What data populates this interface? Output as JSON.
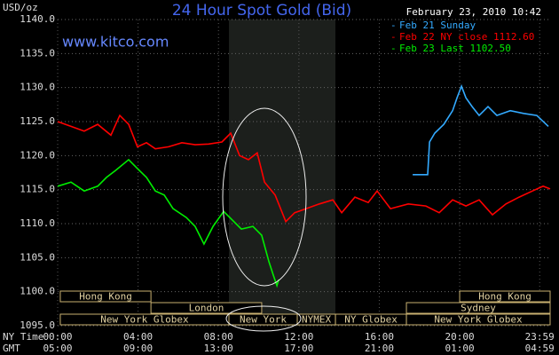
{
  "chart_data": {
    "type": "line",
    "title": "24 Hour Spot Gold (Bid)",
    "subtitle": "February 23, 2010 10:42",
    "source": "www.kitco.com",
    "ylabel": "USD/oz",
    "x_row_labels": [
      "NY Time",
      "GMT"
    ],
    "xlim": [
      0,
      24.5
    ],
    "xticks": [
      {
        "value": 0,
        "label": "00:00"
      },
      {
        "value": 4,
        "label": "04:00"
      },
      {
        "value": 8,
        "label": "08:00"
      },
      {
        "value": 12,
        "label": "12:00"
      },
      {
        "value": 16,
        "label": "16:00"
      },
      {
        "value": 20,
        "label": "20:00"
      },
      {
        "value": 23.98,
        "label": "23:59"
      }
    ],
    "xticks_gmt": [
      "05:00",
      "09:00",
      "13:00",
      "17:00",
      "21:00",
      "01:00",
      "04:59"
    ],
    "ylim": [
      1095,
      1140
    ],
    "yticks": [
      {
        "value": 1095,
        "label": "1095.0"
      },
      {
        "value": 1100,
        "label": "1100.0"
      },
      {
        "value": 1105,
        "label": "1105.0"
      },
      {
        "value": 1110,
        "label": "1110.0"
      },
      {
        "value": 1115,
        "label": "1115.0"
      },
      {
        "value": 1120,
        "label": "1120.0"
      },
      {
        "value": 1125,
        "label": "1125.0"
      },
      {
        "value": 1130,
        "label": "1130.0"
      },
      {
        "value": 1135,
        "label": "1135.0"
      },
      {
        "value": 1140,
        "label": "1140.0"
      }
    ],
    "grid": true,
    "series": [
      {
        "name": "Feb 21 Sunday",
        "color": "#33aaff",
        "x": [
          17.66,
          18.41,
          18.5,
          18.76,
          19.21,
          19.65,
          19.87,
          20.09,
          20.31,
          20.62,
          20.97,
          21.41,
          21.85,
          22.52,
          23.18,
          23.84,
          24.41
        ],
        "values": [
          1117.2,
          1117.2,
          1122.0,
          1123.3,
          1124.6,
          1126.6,
          1128.5,
          1130.2,
          1128.5,
          1127.2,
          1125.9,
          1127.2,
          1125.9,
          1126.6,
          1126.2,
          1125.9,
          1124.3
        ]
      },
      {
        "name": "Feb 22 NY close 1112.60",
        "color": "#ff0000",
        "x": [
          0,
          0.66,
          1.32,
          1.99,
          2.65,
          3.09,
          3.53,
          3.97,
          4.42,
          4.86,
          5.52,
          6.18,
          6.84,
          7.51,
          8.17,
          8.61,
          9.05,
          9.49,
          9.93,
          10.29,
          10.82,
          11.35,
          11.79,
          12.36,
          13.02,
          13.69,
          14.13,
          14.79,
          15.45,
          15.89,
          16.56,
          17.44,
          18.32,
          18.98,
          19.65,
          20.31,
          20.97,
          21.63,
          22.3,
          22.96,
          23.62,
          24.15,
          24.5
        ],
        "values": [
          1125.0,
          1124.3,
          1123.6,
          1124.6,
          1123.0,
          1125.9,
          1124.6,
          1121.3,
          1121.9,
          1121.0,
          1121.3,
          1121.9,
          1121.6,
          1121.7,
          1122.0,
          1123.3,
          1120.0,
          1119.4,
          1120.4,
          1116.1,
          1114.2,
          1110.3,
          1111.6,
          1112.2,
          1112.9,
          1113.5,
          1111.6,
          1113.9,
          1113.1,
          1114.8,
          1112.2,
          1112.9,
          1112.6,
          1111.6,
          1113.5,
          1112.6,
          1113.5,
          1111.3,
          1112.9,
          1113.9,
          1114.8,
          1115.5,
          1115.1
        ]
      },
      {
        "name": "Feb 23 Last 1102.50",
        "color": "#00ee00",
        "x": [
          0,
          0.66,
          1.32,
          1.99,
          2.43,
          2.87,
          3.53,
          3.97,
          4.42,
          4.86,
          5.3,
          5.74,
          6.4,
          6.84,
          7.28,
          7.73,
          8.26,
          8.7,
          9.14,
          9.71,
          10.15,
          10.51,
          10.73,
          10.91,
          11.0
        ],
        "values": [
          1115.5,
          1116.1,
          1114.8,
          1115.5,
          1116.8,
          1117.8,
          1119.4,
          1118.1,
          1116.8,
          1114.8,
          1114.2,
          1112.2,
          1110.9,
          1109.6,
          1107.0,
          1109.6,
          1111.8,
          1110.5,
          1109.2,
          1109.6,
          1108.3,
          1104.4,
          1102.4,
          1100.9,
          1101.8
        ]
      }
    ],
    "sessions": [
      {
        "label": "Hong Kong",
        "start": 0.13,
        "end": 4.64
      },
      {
        "label": "Hong Kong",
        "start": 20.0,
        "end": 24.5
      },
      {
        "label": "London",
        "start": 4.64,
        "end": 10.15
      },
      {
        "label": "Sydney",
        "start": 17.35,
        "end": 24.5
      },
      {
        "label": "New York Globex",
        "start": 0.13,
        "end": 8.52
      },
      {
        "label": "New York",
        "start": 8.52,
        "end": 11.92
      },
      {
        "label": "NYMEX",
        "start": 11.92,
        "end": 13.82
      },
      {
        "label": "NY Globex",
        "start": 13.82,
        "end": 17.35
      },
      {
        "label": "New York Globex",
        "start": 17.35,
        "end": 24.5
      }
    ]
  }
}
